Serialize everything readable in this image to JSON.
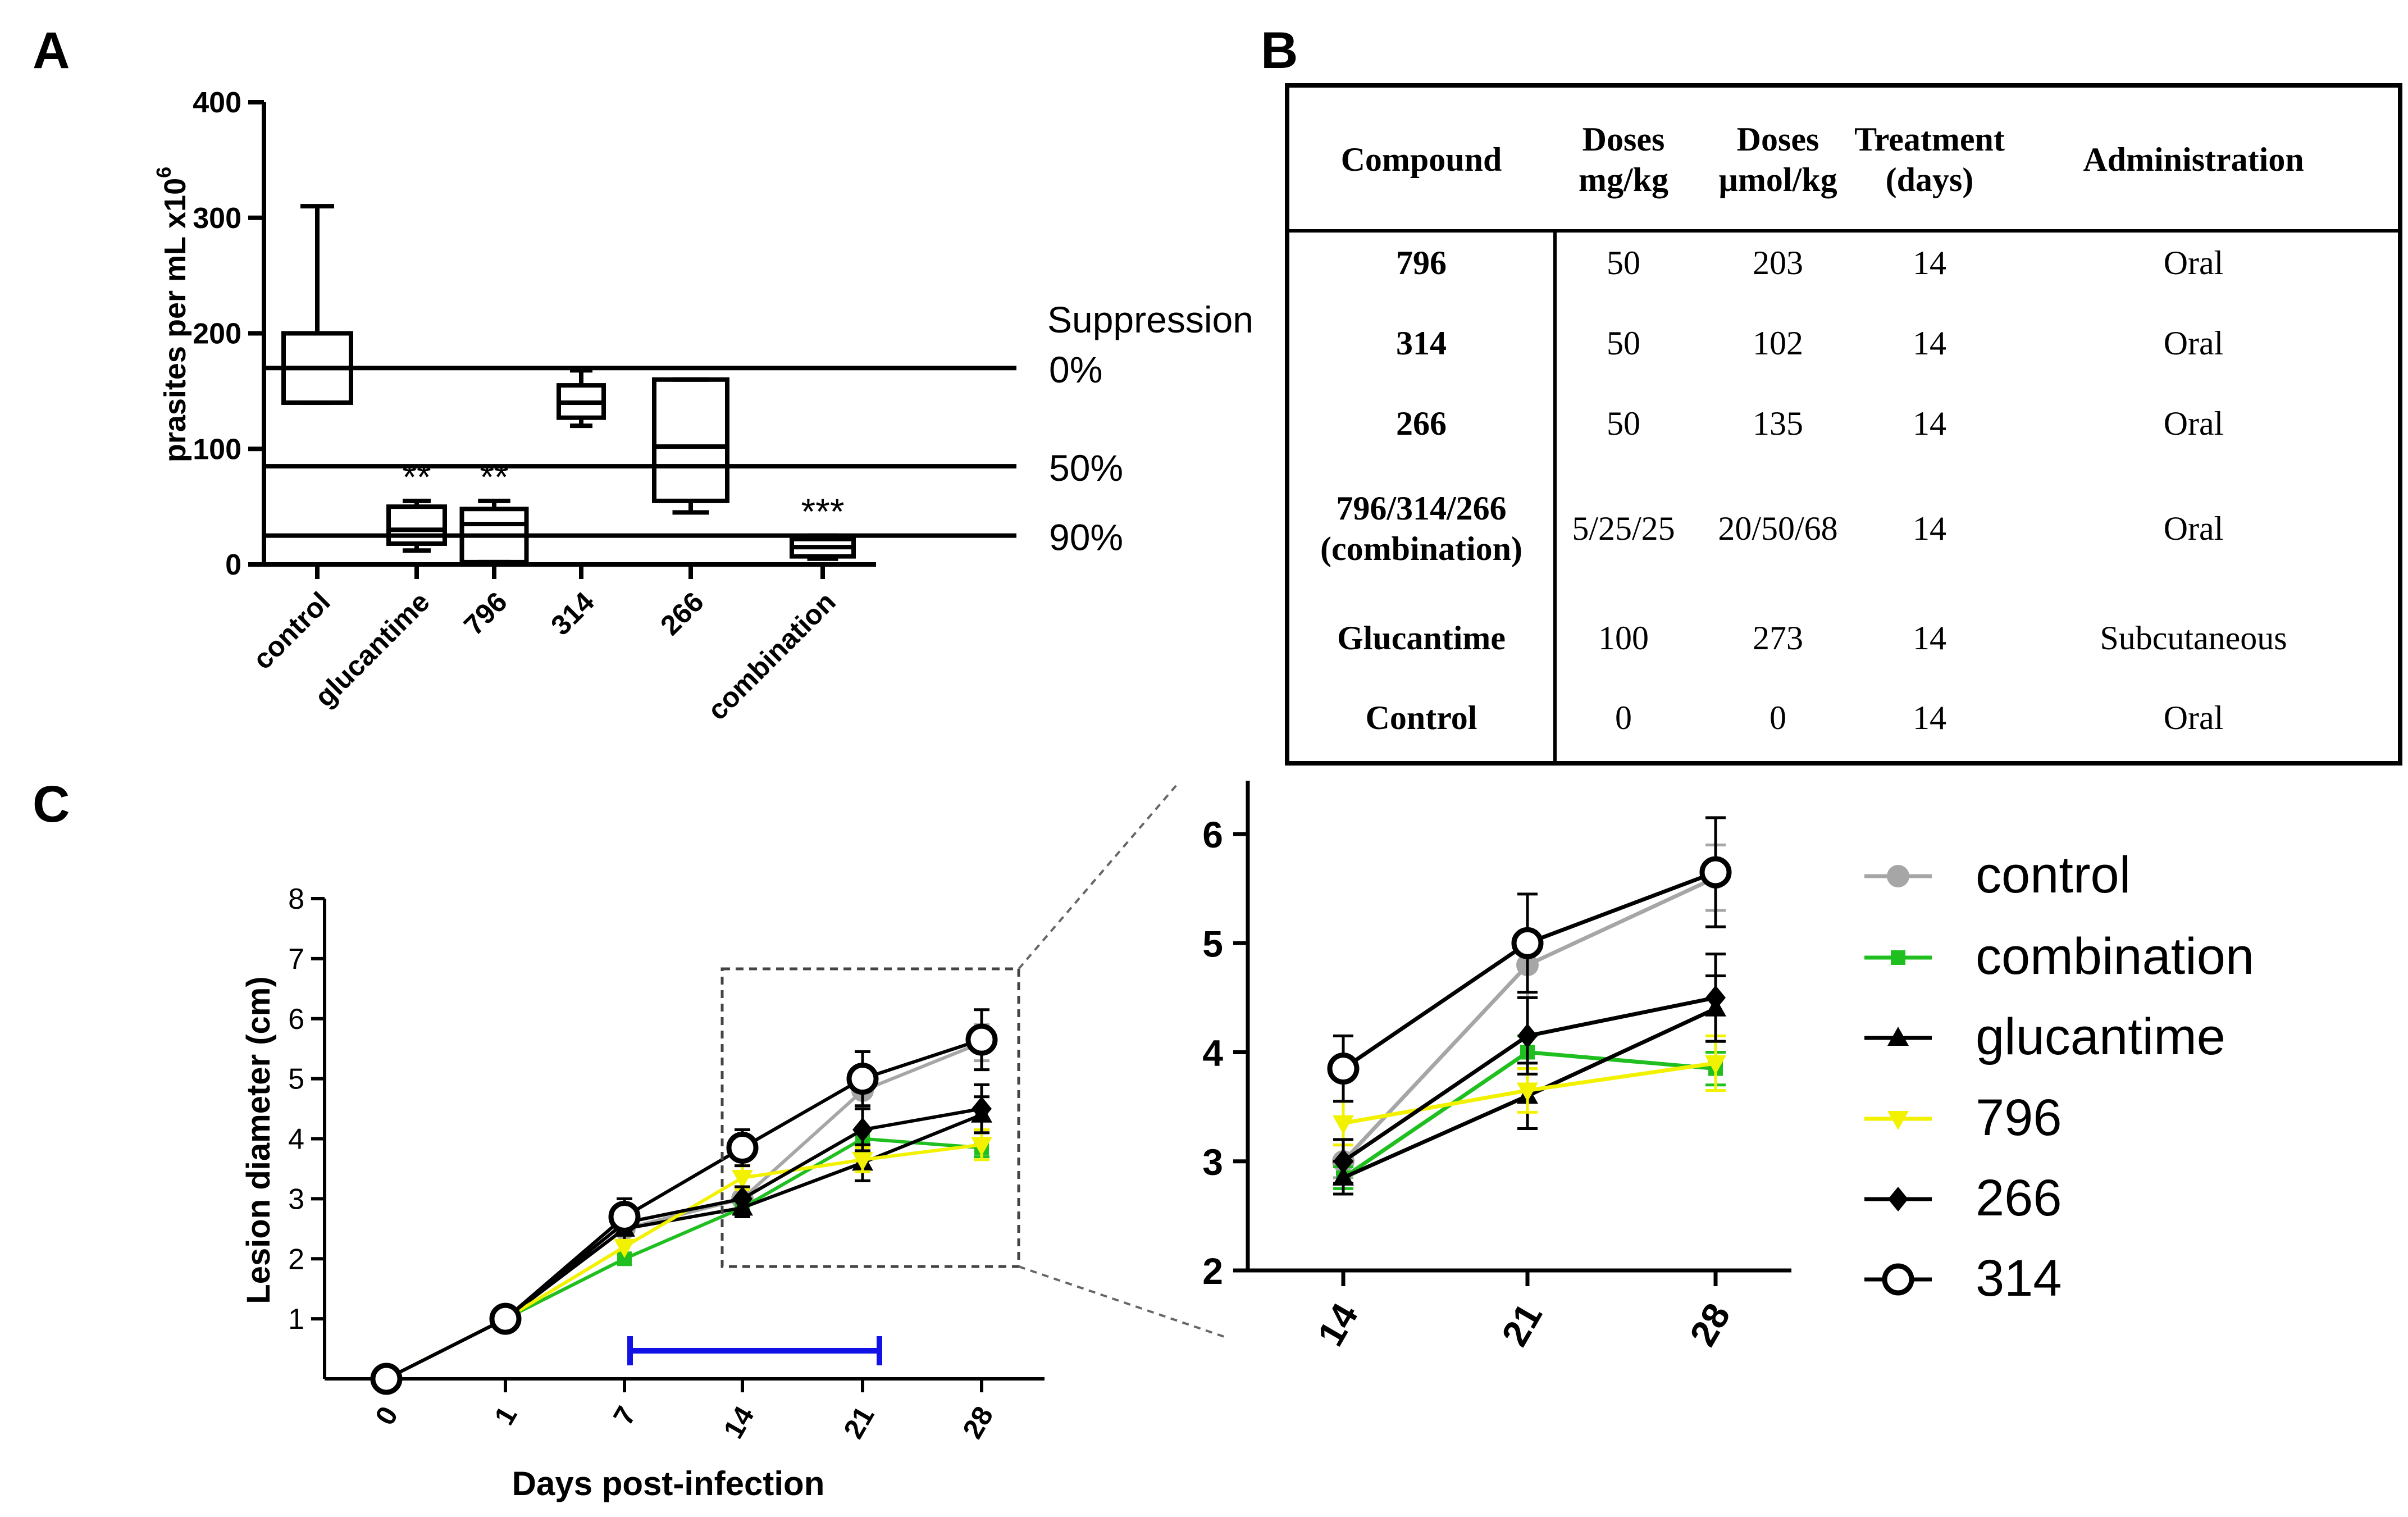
{
  "panels": {
    "a": "A",
    "b": "B",
    "c": "C"
  },
  "chart_data": [
    {
      "type": "box",
      "ylabel": "prasites per mL x10",
      "ylabel_sup": "6",
      "ylim": [
        0,
        400
      ],
      "yticks": [
        "0",
        "100",
        "200",
        "300",
        "400"
      ],
      "categories": [
        "control",
        "glucantime",
        "796",
        "314",
        "266",
        "combination"
      ],
      "boxes": [
        {
          "name": "control",
          "min": 140,
          "q1": 140,
          "median": 170,
          "q3": 200,
          "max": 310
        },
        {
          "name": "glucantime",
          "min": 12,
          "q1": 18,
          "median": 30,
          "q3": 50,
          "max": 55
        },
        {
          "name": "796",
          "min": 2,
          "q1": 2,
          "median": 35,
          "q3": 48,
          "max": 55
        },
        {
          "name": "314",
          "min": 120,
          "q1": 127,
          "median": 140,
          "q3": 155,
          "max": 168
        },
        {
          "name": "266",
          "min": 45,
          "q1": 55,
          "median": 102,
          "q3": 160,
          "max": 160
        },
        {
          "name": "combination",
          "min": 5,
          "q1": 7,
          "median": 15,
          "q3": 22,
          "max": 25
        }
      ],
      "significance": [
        {
          "category": "glucantime",
          "label": "**"
        },
        {
          "category": "796",
          "label": "**"
        },
        {
          "category": "combination",
          "label": "***"
        }
      ],
      "reference_lines": [
        {
          "y": 170,
          "label": "0%"
        },
        {
          "y": 85,
          "label": "50%"
        },
        {
          "y": 25,
          "label": "90%"
        }
      ],
      "reference_title": "Suppression"
    },
    {
      "type": "table",
      "columns": [
        [
          "Compound"
        ],
        [
          "Doses",
          "mg/kg"
        ],
        [
          "Doses",
          "µmol/kg"
        ],
        [
          "Treatment",
          "(days)"
        ],
        [
          "Administration"
        ]
      ],
      "rows": [
        [
          [
            "796"
          ],
          [
            "50"
          ],
          [
            "203"
          ],
          [
            "14"
          ],
          [
            "Oral"
          ]
        ],
        [
          [
            "314"
          ],
          [
            "50"
          ],
          [
            "102"
          ],
          [
            "14"
          ],
          [
            "Oral"
          ]
        ],
        [
          [
            "266"
          ],
          [
            "50"
          ],
          [
            "135"
          ],
          [
            "14"
          ],
          [
            "Oral"
          ]
        ],
        [
          [
            "796/314/266",
            "(combination)"
          ],
          [
            "5/25/25"
          ],
          [
            "20/50/68"
          ],
          [
            "14"
          ],
          [
            "Oral"
          ]
        ],
        [
          [
            "Glucantime"
          ],
          [
            "100"
          ],
          [
            "273"
          ],
          [
            "14"
          ],
          [
            "Subcutaneous"
          ]
        ],
        [
          [
            "Control"
          ],
          [
            "0"
          ],
          [
            "0"
          ],
          [
            "14"
          ],
          [
            "Oral"
          ]
        ]
      ]
    },
    {
      "type": "line",
      "xlabel": "Days post-infection",
      "ylabel": "Lesion diameter (cm)",
      "x": [
        "0",
        "1",
        "7",
        "14",
        "21",
        "28"
      ],
      "ylim": [
        0,
        8
      ],
      "yticks": [
        "1",
        "2",
        "3",
        "4",
        "5",
        "6",
        "7",
        "8"
      ],
      "treatment_period": {
        "from_x": 7,
        "to_x": 21
      },
      "series": [
        {
          "name": "control",
          "color": "#a6a6a6",
          "marker": "circle",
          "values": [
            0,
            1,
            2.5,
            3.0,
            4.8,
            5.6
          ],
          "err": [
            0,
            0,
            0,
            0.15,
            0.3,
            0.3
          ]
        },
        {
          "name": "combination",
          "color": "#1fbf1f",
          "marker": "square",
          "values": [
            0,
            1,
            2.0,
            2.85,
            4.0,
            3.85
          ],
          "err": [
            0,
            0,
            0,
            0.1,
            0.15,
            0.15
          ]
        },
        {
          "name": "glucantime",
          "color": "#000000",
          "marker": "triangle-up",
          "values": [
            0,
            1,
            2.5,
            2.85,
            3.6,
            4.4
          ],
          "err": [
            0,
            0,
            0.2,
            0.15,
            0.3,
            0.3
          ]
        },
        {
          "name": "796",
          "color": "#f2f200",
          "marker": "triangle-down",
          "values": [
            0,
            1,
            2.2,
            3.35,
            3.65,
            3.9
          ],
          "err": [
            0,
            0,
            0,
            0.2,
            0.2,
            0.25
          ]
        },
        {
          "name": "266",
          "color": "#000000",
          "marker": "diamond",
          "values": [
            0,
            1,
            2.6,
            3.0,
            4.15,
            4.5
          ],
          "err": [
            0,
            0,
            0.15,
            0.2,
            0.35,
            0.4
          ]
        },
        {
          "name": "314",
          "color": "#000000",
          "marker": "open-circle",
          "values": [
            0,
            1,
            2.7,
            3.85,
            5.0,
            5.65
          ],
          "err": [
            0,
            0,
            0.3,
            0.3,
            0.45,
            0.5
          ]
        }
      ]
    },
    {
      "type": "line",
      "x": [
        "14",
        "21",
        "28"
      ],
      "ylim": [
        2,
        6.4
      ],
      "yticks": [
        "2",
        "3",
        "4",
        "5",
        "6"
      ],
      "series_ref": "same as panel C main plot, days 14-28"
    }
  ]
}
